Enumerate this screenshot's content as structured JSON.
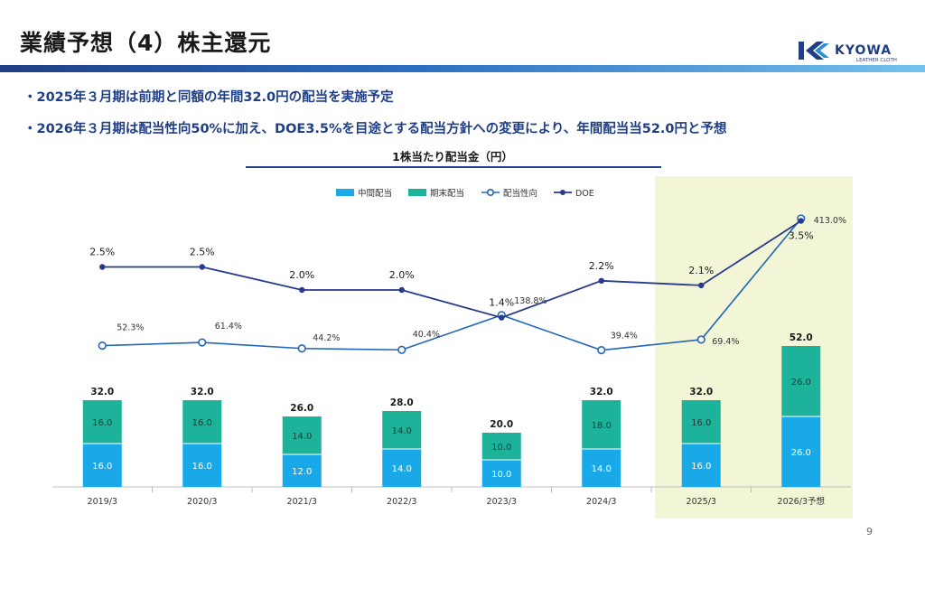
{
  "title": "業績予想（4）株主還元",
  "logo_text": "KYOWA LEATHER CLOTH",
  "bullets": [
    "・2025年３月期は前期と同額の年間32.0円の配当を実施予定",
    "・2026年３月期は配当性向50%に加え、DOE3.5%を目途とする配当方針への変更により、年間配当当52.0円と予想"
  ],
  "page_number": "9",
  "colors": {
    "interim": "#1aa9e8",
    "year_end": "#1cb39a",
    "payout": "#2266b8",
    "doe": "#273a8c",
    "highlight": "#f2f5d6",
    "title_line": "#1f3f86"
  },
  "chart_data": {
    "type": "bar",
    "title": "1株当たり配当金（円）",
    "categories": [
      "2019/3",
      "2020/3",
      "2021/3",
      "2022/3",
      "2023/3",
      "2024/3",
      "2025/3",
      "2026/3予想"
    ],
    "highlighted_categories": [
      "2025/3",
      "2026/3予想"
    ],
    "legend_position": "top",
    "series": [
      {
        "name": "中間配当",
        "type": "bar",
        "stack": "dividend",
        "values": [
          16.0,
          16.0,
          12.0,
          14.0,
          10.0,
          14.0,
          16.0,
          26.0
        ],
        "labels": [
          "16.0",
          "16.0",
          "12.0",
          "14.0",
          "10.0",
          "14.0",
          "16.0",
          "26.0"
        ]
      },
      {
        "name": "期末配当",
        "type": "bar",
        "stack": "dividend",
        "values": [
          16.0,
          16.0,
          14.0,
          14.0,
          10.0,
          18.0,
          16.0,
          26.0
        ],
        "labels": [
          "16.0",
          "16.0",
          "14.0",
          "14.0",
          "10.0",
          "18.0",
          "16.0",
          "26.0"
        ]
      },
      {
        "name": "配当性向",
        "type": "line",
        "unit": "%",
        "values": [
          52.3,
          61.4,
          44.2,
          40.4,
          138.8,
          39.4,
          69.4,
          413.0
        ],
        "labels": [
          "52.3%",
          "61.4%",
          "44.2%",
          "40.4%",
          "138.8%",
          "39.4%",
          "69.4%",
          "413.0%"
        ]
      },
      {
        "name": "DOE",
        "type": "line",
        "unit": "%",
        "values": [
          2.5,
          2.5,
          2.0,
          2.0,
          1.4,
          2.2,
          2.1,
          3.5
        ],
        "labels": [
          "2.5%",
          "2.5%",
          "2.0%",
          "2.0%",
          "1.4%",
          "2.2%",
          "2.1%",
          "3.5%"
        ]
      }
    ],
    "totals": [
      32.0,
      32.0,
      26.0,
      28.0,
      20.0,
      32.0,
      32.0,
      52.0
    ],
    "total_labels": [
      "32.0",
      "32.0",
      "26.0",
      "28.0",
      "20.0",
      "32.0",
      "32.0",
      "52.0"
    ]
  }
}
